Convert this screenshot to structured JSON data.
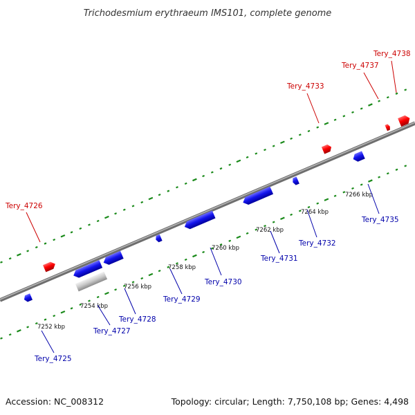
{
  "title": "Trichodesmium erythraeum IMS101, complete genome",
  "accession": "Accession: NC_008312",
  "summary": "Topology: circular; Length: 7,750,108 bp; Genes: 4,498",
  "colors": {
    "forward_gene": "#ff0000",
    "reverse_gene": "#0000ee",
    "other_feature": "#c0c0c0",
    "forward_label": "#cc0000",
    "reverse_label": "#0000aa",
    "tick": "#1a8a1a",
    "backbone": "#8c8c8c"
  },
  "kbp_labels": [
    "7252 kbp",
    "7254 kbp",
    "7256 kbp",
    "7258 kbp",
    "7260 kbp",
    "7262 kbp",
    "7264 kbp",
    "7266 kbp"
  ],
  "forward_genes": [
    "Tery_4726",
    "Tery_4733",
    "Tery_4737",
    "Tery_4738"
  ],
  "reverse_genes": [
    "Tery_4725",
    "Tery_4727",
    "Tery_4728",
    "Tery_4729",
    "Tery_4730",
    "Tery_4731",
    "Tery_4732",
    "Tery_4735"
  ]
}
